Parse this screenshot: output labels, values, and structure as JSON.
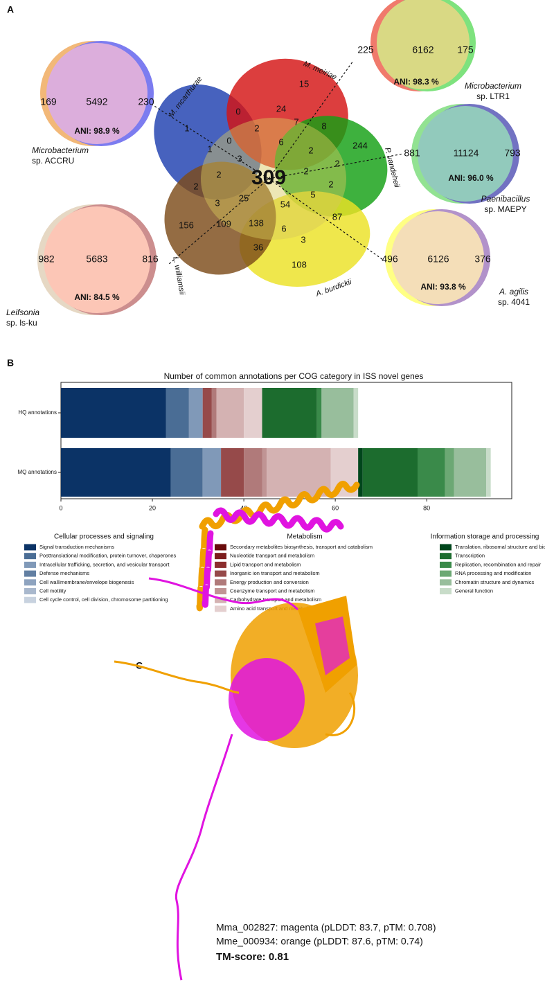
{
  "panels": {
    "a": {
      "label": "A",
      "venn": {
        "sets": [
          "M. mcarthurae",
          "M. meiriae",
          "P. vandeheii",
          "A. burdickii",
          "L. williamsii"
        ],
        "colors": [
          "#1f3fb0",
          "#d41414",
          "#14a014",
          "#ece224",
          "#7c4c1a"
        ],
        "counts": [
          15,
          0,
          24,
          2,
          7,
          8,
          244,
          0,
          6,
          2,
          1,
          1,
          3,
          2,
          309,
          2,
          2,
          2,
          2,
          25,
          54,
          5,
          87,
          3,
          109,
          138,
          6,
          156,
          36,
          3,
          108
        ]
      },
      "pairs": [
        {
          "left": 169,
          "shared": 5492,
          "right": 230,
          "ani": "ANI: 98.9 %",
          "genus": "Microbacterium",
          "strain": "sp. ACCRU",
          "left_color": "#f2b878",
          "right_color": "#7c7cf0",
          "fill": "#dcaedc"
        },
        {
          "left": 225,
          "shared": 6162,
          "right": 175,
          "ani": "ANI: 98.3 %",
          "genus": "Microbacterium",
          "strain": "sp. LTR1",
          "left_color": "#f07a6c",
          "right_color": "#7ee27e",
          "fill": "#d9d984"
        },
        {
          "left": 881,
          "shared": 11124,
          "right": 793,
          "ani": "ANI: 96.0 %",
          "genus": "Paenibacillus",
          "strain": "sp. MAEPY",
          "left_color": "#92e292",
          "right_color": "#7272c2",
          "fill": "#92cabc"
        },
        {
          "left": 982,
          "shared": 5683,
          "right": 816,
          "ani": "ANI: 84.5 %",
          "genus": "Leifsonia",
          "strain": "sp. ls-ku",
          "left_color": "#e6d8c4",
          "right_color": "#cc8e8e",
          "fill": "#fcc6b6"
        },
        {
          "left": 496,
          "shared": 6126,
          "right": 376,
          "ani": "ANI: 93.8 %",
          "genus": "A. agilis",
          "strain": "sp. 4041",
          "left_color": "#ffff84",
          "right_color": "#b292ca",
          "fill": "#f4deb8"
        }
      ]
    },
    "b": {
      "label": "B"
    },
    "c": {
      "label": "C",
      "caption": [
        "Mma_002827: magenta (pLDDT: 83.7, pTM: 0.708)",
        "Mme_000934: orange (pLDDT: 87.6, pTM: 0.74)",
        "TM-score: 0.81"
      ]
    }
  },
  "chart_data": {
    "type": "bar",
    "orientation": "horizontal",
    "stacked": true,
    "title": "Number of common annotations per COG category in ISS novel genes",
    "categories": [
      "HQ annotations",
      "MQ annotations"
    ],
    "xlim": [
      0,
      98.6
    ],
    "xticks": [
      0,
      20,
      40,
      60,
      80
    ],
    "series_groups": [
      {
        "name": "Cellular processes and signaling",
        "series": [
          {
            "name": "Signal transduction mechanisms",
            "color": "#0b3366",
            "values": [
              23,
              24
            ]
          },
          {
            "name": "Posttranslational modification, protein turnover, chaperones",
            "color": "#4a6d95",
            "values": [
              5,
              7
            ]
          },
          {
            "name": "Intracellular trafficking, secretion, and vesicular transport",
            "color": "#8099b8",
            "values": [
              3,
              4
            ]
          },
          {
            "name": "Defense mechanisms",
            "color": "#627fa2",
            "values": [
              0,
              0
            ]
          },
          {
            "name": "Cell wall/membrane/envelope biogenesis",
            "color": "#8ea3bf",
            "values": [
              0,
              0
            ]
          },
          {
            "name": "Cell motility",
            "color": "#a9b8cd",
            "values": [
              0,
              0
            ]
          },
          {
            "name": "Cell cycle control, cell division, chromosome partitioning",
            "color": "#c8d2df",
            "values": [
              0,
              0
            ]
          }
        ]
      },
      {
        "name": "Metabolism",
        "series": [
          {
            "name": "Secondary metabolites biosynthesis, transport and catabolism",
            "color": "#680a0a",
            "values": [
              0,
              0
            ]
          },
          {
            "name": "Nucleotide transport and metabolism",
            "color": "#7c1c1c",
            "values": [
              0,
              0
            ]
          },
          {
            "name": "Lipid transport and metabolism",
            "color": "#8c2e2e",
            "values": [
              0,
              0
            ]
          },
          {
            "name": "Inorganic ion transport and metabolism",
            "color": "#964a4a",
            "values": [
              2,
              5
            ]
          },
          {
            "name": "Energy production and conversion",
            "color": "#b07a7a",
            "values": [
              1,
              4
            ]
          },
          {
            "name": "Coenzyme transport and metabolism",
            "color": "#c09494",
            "values": [
              0,
              1
            ]
          },
          {
            "name": "Carbohydrate transport and metabolism",
            "color": "#d4b2b2",
            "values": [
              6,
              14
            ]
          },
          {
            "name": "Amino acid transport and metabolism",
            "color": "#e4cfcf",
            "values": [
              4,
              6
            ]
          }
        ]
      },
      {
        "name": "Information storage and processing",
        "series": [
          {
            "name": "Translation, ribosomal structure and biogenesis",
            "color": "#00461c",
            "values": [
              0,
              1
            ]
          },
          {
            "name": "Transcription",
            "color": "#1c6c2e",
            "values": [
              12,
              12
            ]
          },
          {
            "name": "Replication, recombination and repair",
            "color": "#3a8a4a",
            "values": [
              1,
              6
            ]
          },
          {
            "name": "RNA processing and modification",
            "color": "#6ca874",
            "values": [
              0,
              2
            ]
          },
          {
            "name": "Chromatin structure and dynamics",
            "color": "#98be9c",
            "values": [
              7,
              7
            ]
          },
          {
            "name": "General function",
            "color": "#c8dcc9",
            "values": [
              1,
              1
            ]
          }
        ]
      }
    ]
  }
}
